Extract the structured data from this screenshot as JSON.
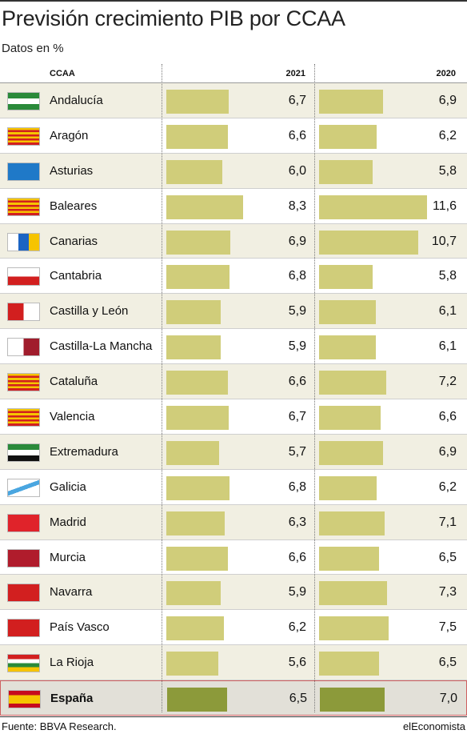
{
  "title": "Previsión crecimiento PIB por CCAA",
  "subtitle": "Datos en %",
  "columns": {
    "region": "CCAA",
    "y2021": "2021",
    "y2020": "2020"
  },
  "footer": {
    "source": "Fuente: BBVA Research.",
    "brand": "elEconomista"
  },
  "colors": {
    "bar": "#d0cd7a",
    "bar_total": "#8c9a3a",
    "row_shade": "#f1efe2",
    "total_row": "#e2e0d8",
    "total_border": "#d06060"
  },
  "chart_data": {
    "type": "bar",
    "categories": [
      "Andalucía",
      "Aragón",
      "Asturias",
      "Baleares",
      "Canarias",
      "Cantabria",
      "Castilla y León",
      "Castilla-La Mancha",
      "Cataluña",
      "Valencia",
      "Extremadura",
      "Galicia",
      "Madrid",
      "Murcia",
      "Navarra",
      "País Vasco",
      "La Rioja",
      "España"
    ],
    "series": [
      {
        "name": "2021",
        "values": [
          6.7,
          6.6,
          6.0,
          8.3,
          6.9,
          6.8,
          5.9,
          5.9,
          6.6,
          6.7,
          5.7,
          6.8,
          6.3,
          6.6,
          5.9,
          6.2,
          5.6,
          6.5
        ],
        "labels": [
          "6,7",
          "6,6",
          "6,0",
          "8,3",
          "6,9",
          "6,8",
          "5,9",
          "5,9",
          "6,6",
          "6,7",
          "5,7",
          "6,8",
          "6,3",
          "6,6",
          "5,9",
          "6,2",
          "5,6",
          "6,5"
        ]
      },
      {
        "name": "2020",
        "values": [
          6.9,
          6.2,
          5.8,
          11.6,
          10.7,
          5.8,
          6.1,
          6.1,
          7.2,
          6.6,
          6.9,
          6.2,
          7.1,
          6.5,
          7.3,
          7.5,
          6.5,
          7.0
        ],
        "labels": [
          "6,9",
          "6,2",
          "5,8",
          "11,6",
          "10,7",
          "5,8",
          "6,1",
          "6,1",
          "7,2",
          "6,6",
          "6,9",
          "6,2",
          "7,1",
          "6,5",
          "7,3",
          "7,5",
          "6,5",
          "7,0"
        ]
      }
    ]
  }
}
